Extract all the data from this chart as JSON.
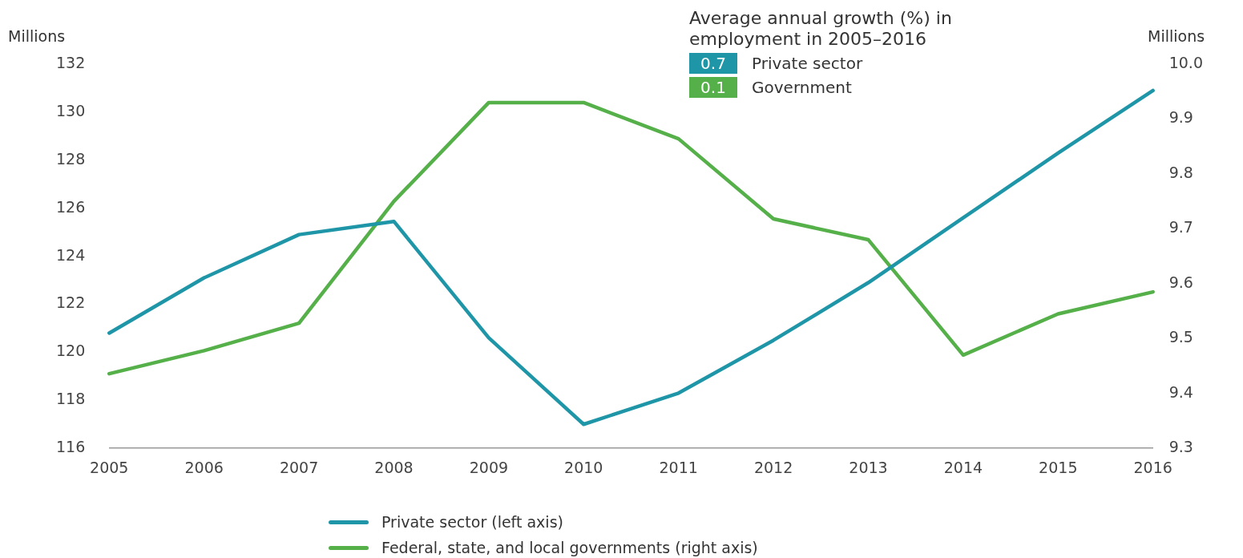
{
  "chart_data": {
    "type": "line",
    "ylabel": "Millions",
    "y2label": "Millions",
    "categories": [
      "2005",
      "2006",
      "2007",
      "2008",
      "2009",
      "2010",
      "2011",
      "2012",
      "2013",
      "2014",
      "2015",
      "2016"
    ],
    "series": [
      {
        "name": "Private sector (left axis)",
        "color": "#1f96a8",
        "values": [
          120.8,
          123.1,
          124.9,
          125.45,
          120.6,
          117.0,
          118.3,
          120.5,
          122.9,
          125.6,
          128.3,
          130.9
        ]
      },
      {
        "name": "Federal, state, and local governments (right axis)",
        "color": "#55b04a",
        "axis": "y2",
        "values": [
          9.436,
          9.478,
          9.528,
          9.75,
          9.93,
          9.93,
          9.864,
          9.718,
          9.68,
          9.47,
          9.545,
          9.585
        ]
      }
    ],
    "ylim": [
      116,
      132
    ],
    "yticks": [
      116,
      118,
      120,
      122,
      124,
      126,
      128,
      130,
      132
    ],
    "y2lim": [
      9.3,
      10.0
    ],
    "y2ticks": [
      {
        "value": 9.3,
        "label": "9.3"
      },
      {
        "value": 9.4,
        "label": "9.4"
      },
      {
        "value": 9.5,
        "label": "9.5"
      },
      {
        "value": 9.6,
        "label": "9.6"
      },
      {
        "value": 9.7,
        "label": "9.7"
      },
      {
        "value": 9.8,
        "label": "9.8"
      },
      {
        "value": 9.9,
        "label": "9.9"
      },
      {
        "value": 10.0,
        "label": "10.0"
      }
    ],
    "annotations": [
      "Average annual growth (%) in employment in 2005–2016",
      "0.7",
      "Private sector",
      "0.1",
      "Government"
    ],
    "grid": false,
    "legend": "bottom",
    "marker": "none",
    "line_style": "solid"
  }
}
